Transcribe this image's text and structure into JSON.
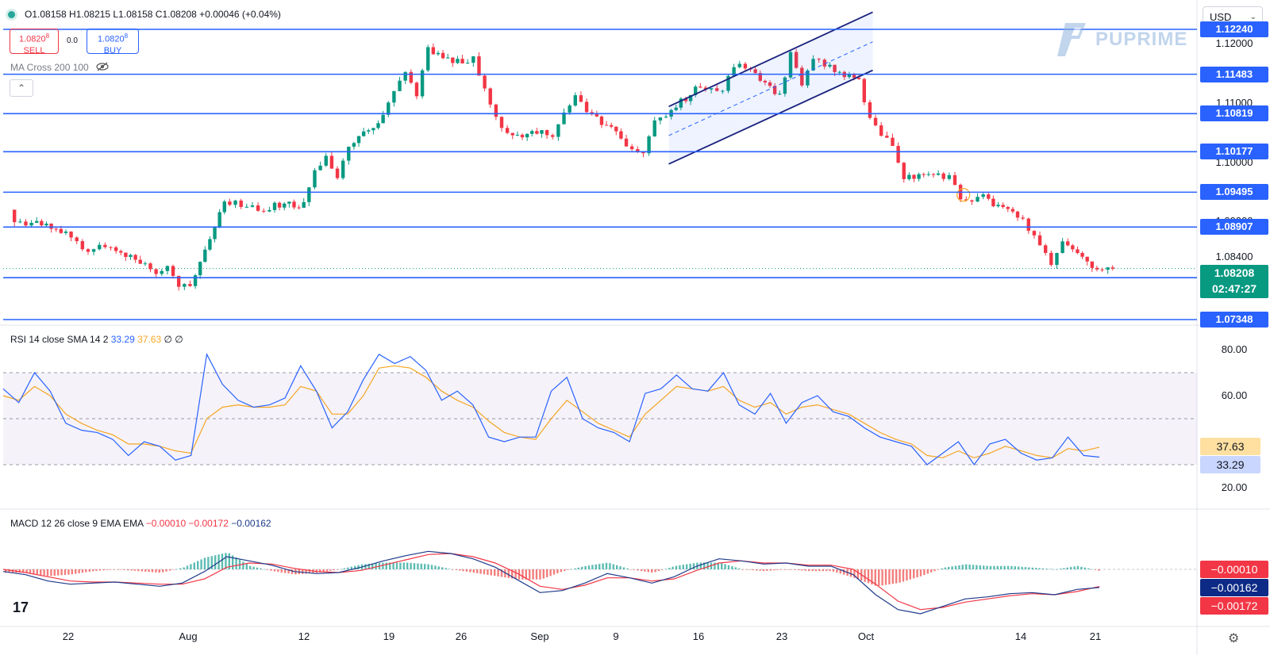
{
  "header": {
    "ohlc_text": "O1.08158 H1.08215 L1.08158 C1.08208 +0.00046 (+0.04%)",
    "sell": {
      "price": "1.0820",
      "sup": "8",
      "label": "SELL"
    },
    "buy": {
      "price": "1.0820",
      "sup": "8",
      "label": "BUY"
    },
    "spread": "0.0",
    "indicator_label": "MA Cross 200 100",
    "currency": "USD",
    "brand": "PUPRIME",
    "tv_logo": "17"
  },
  "colors": {
    "up": "#089981",
    "down": "#f23645",
    "level_line": "#2962ff",
    "channel": "#1a237e",
    "rsi_line": "#2962ff",
    "rsi_sma": "#f5a623",
    "macd_line": "#1e3a8a",
    "signal_line": "#f23645"
  },
  "price_axis": {
    "ticks": [
      "1.12000",
      "1.11000",
      "1.10000",
      "1.09000",
      "1.08400"
    ],
    "levels": [
      "1.12240",
      "1.11483",
      "1.10819",
      "1.10177",
      "1.09495",
      "1.08907",
      "1.08054",
      "1.07348"
    ],
    "current_price": "1.08208",
    "countdown": "02:47:27"
  },
  "rsi_pane": {
    "title": "RSI 14 close SMA 14 2",
    "rsi_value": "33.29",
    "sma_value": "37.63",
    "extra": "∅ ∅",
    "ticks": [
      "80.00",
      "60.00",
      "20.00"
    ]
  },
  "macd_pane": {
    "title": "MACD 12 26 close 9 EMA EMA",
    "hist_value": "−0.00010",
    "macd_value": "−0.00172",
    "signal_value": "−0.00162",
    "axis_labels": [
      "−0.00010",
      "−0.00162",
      "−0.00172"
    ]
  },
  "time_axis": [
    "22",
    "Aug",
    "12",
    "19",
    "26",
    "Sep",
    "9",
    "16",
    "23",
    "Oct",
    "14",
    "21"
  ],
  "chart_data": [
    {
      "type": "candlestick",
      "title": "",
      "xlabel": "",
      "ylabel": "",
      "x_range": [
        "Jul 17",
        "Oct 22"
      ],
      "ylim": [
        1.0734,
        1.1224
      ],
      "horizontal_levels": [
        1.1224,
        1.11483,
        1.10819,
        1.10177,
        1.09495,
        1.08907,
        1.08054,
        1.07348
      ],
      "close_path": [
        {
          "x": "Jul 17",
          "y": 1.0915
        },
        {
          "x": "Jul 18",
          "y": 1.0895
        },
        {
          "x": "Jul 19",
          "y": 1.09
        },
        {
          "x": "Jul 22",
          "y": 1.088
        },
        {
          "x": "Jul 23",
          "y": 1.0865
        },
        {
          "x": "Jul 24",
          "y": 1.085
        },
        {
          "x": "Jul 25",
          "y": 1.0855
        },
        {
          "x": "Jul 26",
          "y": 1.086
        },
        {
          "x": "Jul 29",
          "y": 1.0825
        },
        {
          "x": "Jul 30",
          "y": 1.0815
        },
        {
          "x": "Jul 31",
          "y": 1.083
        },
        {
          "x": "Aug 1",
          "y": 1.079
        },
        {
          "x": "Aug 2",
          "y": 1.0795
        },
        {
          "x": "Aug 5",
          "y": 1.093
        },
        {
          "x": "Aug 6",
          "y": 1.0935
        },
        {
          "x": "Aug 7",
          "y": 1.0925
        },
        {
          "x": "Aug 8",
          "y": 1.092
        },
        {
          "x": "Aug 9",
          "y": 1.0925
        },
        {
          "x": "Aug 12",
          "y": 1.093
        },
        {
          "x": "Aug 13",
          "y": 1.099
        },
        {
          "x": "Aug 14",
          "y": 1.101
        },
        {
          "x": "Aug 15",
          "y": 1.097
        },
        {
          "x": "Aug 16",
          "y": 1.1025
        },
        {
          "x": "Aug 19",
          "y": 1.1075
        },
        {
          "x": "Aug 20",
          "y": 1.1125
        },
        {
          "x": "Aug 21",
          "y": 1.115
        },
        {
          "x": "Aug 22",
          "y": 1.1115
        },
        {
          "x": "Aug 23",
          "y": 1.119
        },
        {
          "x": "Aug 26",
          "y": 1.1165
        },
        {
          "x": "Aug 27",
          "y": 1.1175
        },
        {
          "x": "Aug 28",
          "y": 1.112
        },
        {
          "x": "Aug 29",
          "y": 1.108
        },
        {
          "x": "Aug 30",
          "y": 1.1045
        },
        {
          "x": "Sep 2",
          "y": 1.105
        },
        {
          "x": "Sep 3",
          "y": 1.104
        },
        {
          "x": "Sep 4",
          "y": 1.1085
        },
        {
          "x": "Sep 5",
          "y": 1.111
        },
        {
          "x": "Sep 6",
          "y": 1.109
        },
        {
          "x": "Sep 9",
          "y": 1.104
        },
        {
          "x": "Sep 10",
          "y": 1.1025
        },
        {
          "x": "Sep 11",
          "y": 1.1015
        },
        {
          "x": "Sep 12",
          "y": 1.1075
        },
        {
          "x": "Sep 13",
          "y": 1.108
        },
        {
          "x": "Sep 16",
          "y": 1.113
        },
        {
          "x": "Sep 17",
          "y": 1.112
        },
        {
          "x": "Sep 18",
          "y": 1.1115
        },
        {
          "x": "Sep 19",
          "y": 1.1165
        },
        {
          "x": "Sep 20",
          "y": 1.116
        },
        {
          "x": "Sep 23",
          "y": 1.111
        },
        {
          "x": "Sep 24",
          "y": 1.118
        },
        {
          "x": "Sep 25",
          "y": 1.113
        },
        {
          "x": "Sep 26",
          "y": 1.1175
        },
        {
          "x": "Sep 27",
          "y": 1.1165
        },
        {
          "x": "Sep 30",
          "y": 1.1135
        },
        {
          "x": "Oct 1",
          "y": 1.107
        },
        {
          "x": "Oct 2",
          "y": 1.1045
        },
        {
          "x": "Oct 3",
          "y": 1.103
        },
        {
          "x": "Oct 4",
          "y": 1.0975
        },
        {
          "x": "Oct 7",
          "y": 1.098
        },
        {
          "x": "Oct 8",
          "y": 1.0975
        },
        {
          "x": "Oct 9",
          "y": 1.094
        },
        {
          "x": "Oct 10",
          "y": 1.0935
        },
        {
          "x": "Oct 11",
          "y": 1.094
        },
        {
          "x": "Oct 14",
          "y": 1.091
        },
        {
          "x": "Oct 15",
          "y": 1.089
        },
        {
          "x": "Oct 16",
          "y": 1.0865
        },
        {
          "x": "Oct 17",
          "y": 1.083
        },
        {
          "x": "Oct 18",
          "y": 1.0865
        },
        {
          "x": "Oct 21",
          "y": 1.0815
        },
        {
          "x": "Oct 22",
          "y": 1.08208
        }
      ],
      "channel": {
        "upper": [
          {
            "x": "Sep 13",
            "y": 1.1094
          },
          {
            "x": "Oct 1",
            "y": 1.1253
          }
        ],
        "middle": [
          {
            "x": "Sep 13",
            "y": 1.1045
          },
          {
            "x": "Oct 1",
            "y": 1.1203
          }
        ],
        "lower": [
          {
            "x": "Sep 13",
            "y": 1.0997
          },
          {
            "x": "Oct 1",
            "y": 1.1155
          }
        ]
      }
    },
    {
      "type": "line",
      "title": "RSI 14 close SMA 14 2",
      "ylim": [
        15,
        85
      ],
      "bands": [
        70,
        50,
        30
      ],
      "series": [
        {
          "name": "RSI",
          "values": [
            63,
            57,
            70,
            62,
            48,
            45,
            44,
            41,
            34,
            40,
            38,
            32,
            34,
            78,
            65,
            58,
            55,
            56,
            59,
            73,
            62,
            46,
            53,
            67,
            78,
            74,
            77,
            71,
            58,
            62,
            56,
            42,
            40,
            42,
            42,
            62,
            68,
            50,
            46,
            44,
            40,
            61,
            63,
            69,
            63,
            62,
            70,
            56,
            52,
            61,
            48,
            57,
            60,
            53,
            51,
            46,
            42,
            40,
            38,
            30,
            35,
            40,
            30,
            39,
            41,
            35,
            32,
            33,
            42,
            34,
            33.29
          ]
        },
        {
          "name": "SMA",
          "values": [
            60,
            58,
            64,
            60,
            52,
            48,
            45,
            43,
            39,
            39,
            38,
            36,
            35,
            50,
            55,
            56,
            55,
            55,
            56,
            64,
            62,
            52,
            52,
            60,
            72,
            73,
            72,
            68,
            62,
            58,
            55,
            49,
            44,
            42,
            41,
            50,
            58,
            53,
            48,
            45,
            42,
            52,
            58,
            64,
            63,
            62,
            64,
            58,
            55,
            57,
            52,
            55,
            56,
            54,
            52,
            48,
            44,
            41,
            39,
            34,
            33,
            36,
            33,
            35,
            38,
            36,
            34,
            33,
            37,
            36,
            37.63
          ]
        }
      ]
    },
    {
      "type": "line",
      "title": "MACD 12 26 close 9 EMA EMA",
      "series": [
        {
          "name": "MACD",
          "values": [
            -0.0002,
            -0.0005,
            -0.0011,
            -0.0014,
            -0.0013,
            -0.0012,
            -0.0014,
            -0.0016,
            -0.0013,
            -0.0002,
            0.0012,
            0.0008,
            0.0004,
            -0.0002,
            -0.0004,
            -0.0003,
            0.0002,
            0.0008,
            0.0013,
            0.0017,
            0.0015,
            0.001,
            0.0002,
            -0.001,
            -0.0022,
            -0.002,
            -0.0013,
            -0.0004,
            -0.0008,
            -0.0013,
            -0.0007,
            0.0003,
            0.001,
            0.0008,
            0.0005,
            0.0006,
            0.0003,
            0.0003,
            -0.0005,
            -0.0024,
            -0.0038,
            -0.0042,
            -0.0035,
            -0.0028,
            -0.0026,
            -0.0023,
            -0.0022,
            -0.0024,
            -0.0019,
            -0.00172
          ]
        },
        {
          "name": "Signal",
          "values": [
            0.0,
            -0.0003,
            -0.0007,
            -0.0011,
            -0.0012,
            -0.0012,
            -0.0013,
            -0.0014,
            -0.0014,
            -0.0009,
            0.0002,
            0.0006,
            0.0005,
            0.0001,
            -0.0002,
            -0.0003,
            -0.0001,
            0.0004,
            0.0009,
            0.0014,
            0.0015,
            0.0012,
            0.0006,
            -0.0004,
            -0.0016,
            -0.0019,
            -0.0015,
            -0.0008,
            -0.0008,
            -0.0011,
            -0.0009,
            -0.0001,
            0.0006,
            0.0008,
            0.0006,
            0.0006,
            0.0004,
            0.0004,
            0.0,
            -0.0014,
            -0.003,
            -0.0038,
            -0.0036,
            -0.0031,
            -0.0028,
            -0.0025,
            -0.0023,
            -0.0024,
            -0.0021,
            -0.00162
          ]
        }
      ]
    }
  ]
}
